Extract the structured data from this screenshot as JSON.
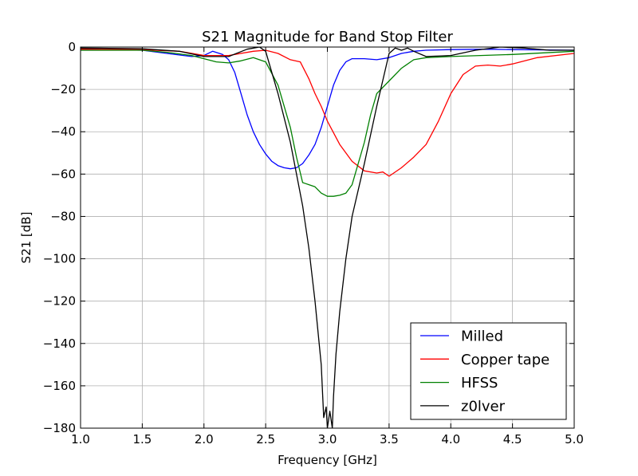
{
  "chart_data": {
    "type": "line",
    "title": "S21 Magnitude for Band Stop Filter",
    "xlabel": "Frequency [GHz]",
    "ylabel": "S21 [dB]",
    "xlim": [
      1.0,
      5.0
    ],
    "ylim": [
      -180,
      0
    ],
    "xticks": [
      1.0,
      1.5,
      2.0,
      2.5,
      3.0,
      3.5,
      4.0,
      4.5,
      5.0
    ],
    "xtick_labels": [
      "1.0",
      "1.5",
      "2.0",
      "2.5",
      "3.0",
      "3.5",
      "4.0",
      "4.5",
      "5.0"
    ],
    "yticks": [
      0,
      -20,
      -40,
      -60,
      -80,
      -100,
      -120,
      -140,
      -160,
      -180
    ],
    "ytick_labels": [
      "0",
      "−20",
      "−40",
      "−60",
      "−80",
      "−100",
      "−120",
      "−140",
      "−160",
      "−180"
    ],
    "grid": true,
    "legend_position": "lower-right",
    "series": [
      {
        "name": "Milled",
        "color": "#0000ff",
        "x": [
          1.0,
          1.5,
          1.7,
          1.9,
          2.0,
          2.07,
          2.15,
          2.2,
          2.25,
          2.3,
          2.35,
          2.4,
          2.45,
          2.5,
          2.55,
          2.6,
          2.65,
          2.7,
          2.75,
          2.8,
          2.85,
          2.9,
          2.95,
          3.0,
          3.05,
          3.1,
          3.15,
          3.2,
          3.3,
          3.4,
          3.5,
          3.6,
          3.7,
          3.8,
          4.0,
          4.3,
          4.5,
          5.0
        ],
        "y": [
          -1.0,
          -1.5,
          -3.0,
          -4.5,
          -4.0,
          -2.0,
          -3.5,
          -6.0,
          -12.0,
          -22.0,
          -32.0,
          -40.0,
          -46.0,
          -50.5,
          -54.0,
          -56.0,
          -57.0,
          -57.5,
          -57.0,
          -55.0,
          -51.0,
          -46.0,
          -38.0,
          -28.0,
          -18.0,
          -11.0,
          -7.0,
          -5.5,
          -5.5,
          -6.0,
          -5.0,
          -3.0,
          -2.0,
          -1.5,
          -1.2,
          -1.0,
          -1.2,
          -1.5
        ]
      },
      {
        "name": "Copper tape",
        "color": "#ff0000",
        "x": [
          1.0,
          1.5,
          1.8,
          2.0,
          2.2,
          2.4,
          2.5,
          2.6,
          2.7,
          2.78,
          2.85,
          2.9,
          2.95,
          3.0,
          3.1,
          3.2,
          3.3,
          3.4,
          3.45,
          3.5,
          3.6,
          3.7,
          3.8,
          3.9,
          4.0,
          4.1,
          4.2,
          4.3,
          4.4,
          4.5,
          4.7,
          5.0
        ],
        "y": [
          -1.0,
          -1.2,
          -2.0,
          -4.0,
          -4.0,
          -2.0,
          -1.5,
          -3.0,
          -6.0,
          -7.0,
          -15.0,
          -22.0,
          -28.0,
          -35.0,
          -46.0,
          -54.0,
          -58.5,
          -59.5,
          -59.0,
          -61.0,
          -57.0,
          -52.0,
          -46.0,
          -35.0,
          -22.0,
          -13.0,
          -9.0,
          -8.5,
          -9.0,
          -8.0,
          -5.0,
          -3.0
        ]
      },
      {
        "name": "HFSS",
        "color": "#008000",
        "x": [
          1.0,
          1.5,
          1.7,
          1.9,
          2.0,
          2.1,
          2.2,
          2.3,
          2.4,
          2.5,
          2.6,
          2.7,
          2.75,
          2.8,
          2.85,
          2.9,
          2.95,
          3.0,
          3.05,
          3.1,
          3.15,
          3.2,
          3.3,
          3.35,
          3.4,
          3.5,
          3.6,
          3.7,
          3.8,
          4.0,
          4.5,
          5.0
        ],
        "y": [
          -1.5,
          -1.5,
          -2.5,
          -4.0,
          -5.5,
          -7.0,
          -7.5,
          -6.5,
          -5.0,
          -7.0,
          -18.0,
          -38.0,
          -52.0,
          -64.0,
          -65.0,
          -66.0,
          -69.0,
          -70.5,
          -70.5,
          -70.0,
          -69.0,
          -65.0,
          -45.0,
          -32.0,
          -22.0,
          -16.0,
          -10.0,
          -6.0,
          -5.0,
          -4.5,
          -3.5,
          -2.0
        ]
      },
      {
        "name": "z0lver",
        "color": "#000000",
        "x": [
          1.0,
          1.5,
          1.8,
          2.0,
          2.2,
          2.35,
          2.45,
          2.5,
          2.6,
          2.7,
          2.8,
          2.85,
          2.9,
          2.95,
          2.97,
          2.99,
          3.0,
          3.02,
          3.04,
          3.05,
          3.07,
          3.1,
          3.15,
          3.2,
          3.3,
          3.4,
          3.5,
          3.55,
          3.6,
          3.65,
          3.7,
          3.8,
          4.0,
          4.2,
          4.4,
          4.6,
          4.8,
          5.0
        ],
        "y": [
          -0.5,
          -0.8,
          -2.0,
          -4.5,
          -4.5,
          -1.0,
          0.0,
          -2.0,
          -22.0,
          -45.0,
          -75.0,
          -95.0,
          -120.0,
          -150.0,
          -175.0,
          -170.0,
          -180.0,
          -172.0,
          -180.0,
          -165.0,
          -145.0,
          -125.0,
          -100.0,
          -80.0,
          -55.0,
          -28.0,
          -3.0,
          -0.5,
          -1.5,
          -0.5,
          -2.0,
          -4.5,
          -4.0,
          -1.5,
          0.0,
          -0.5,
          -1.5,
          -1.5
        ]
      }
    ]
  }
}
